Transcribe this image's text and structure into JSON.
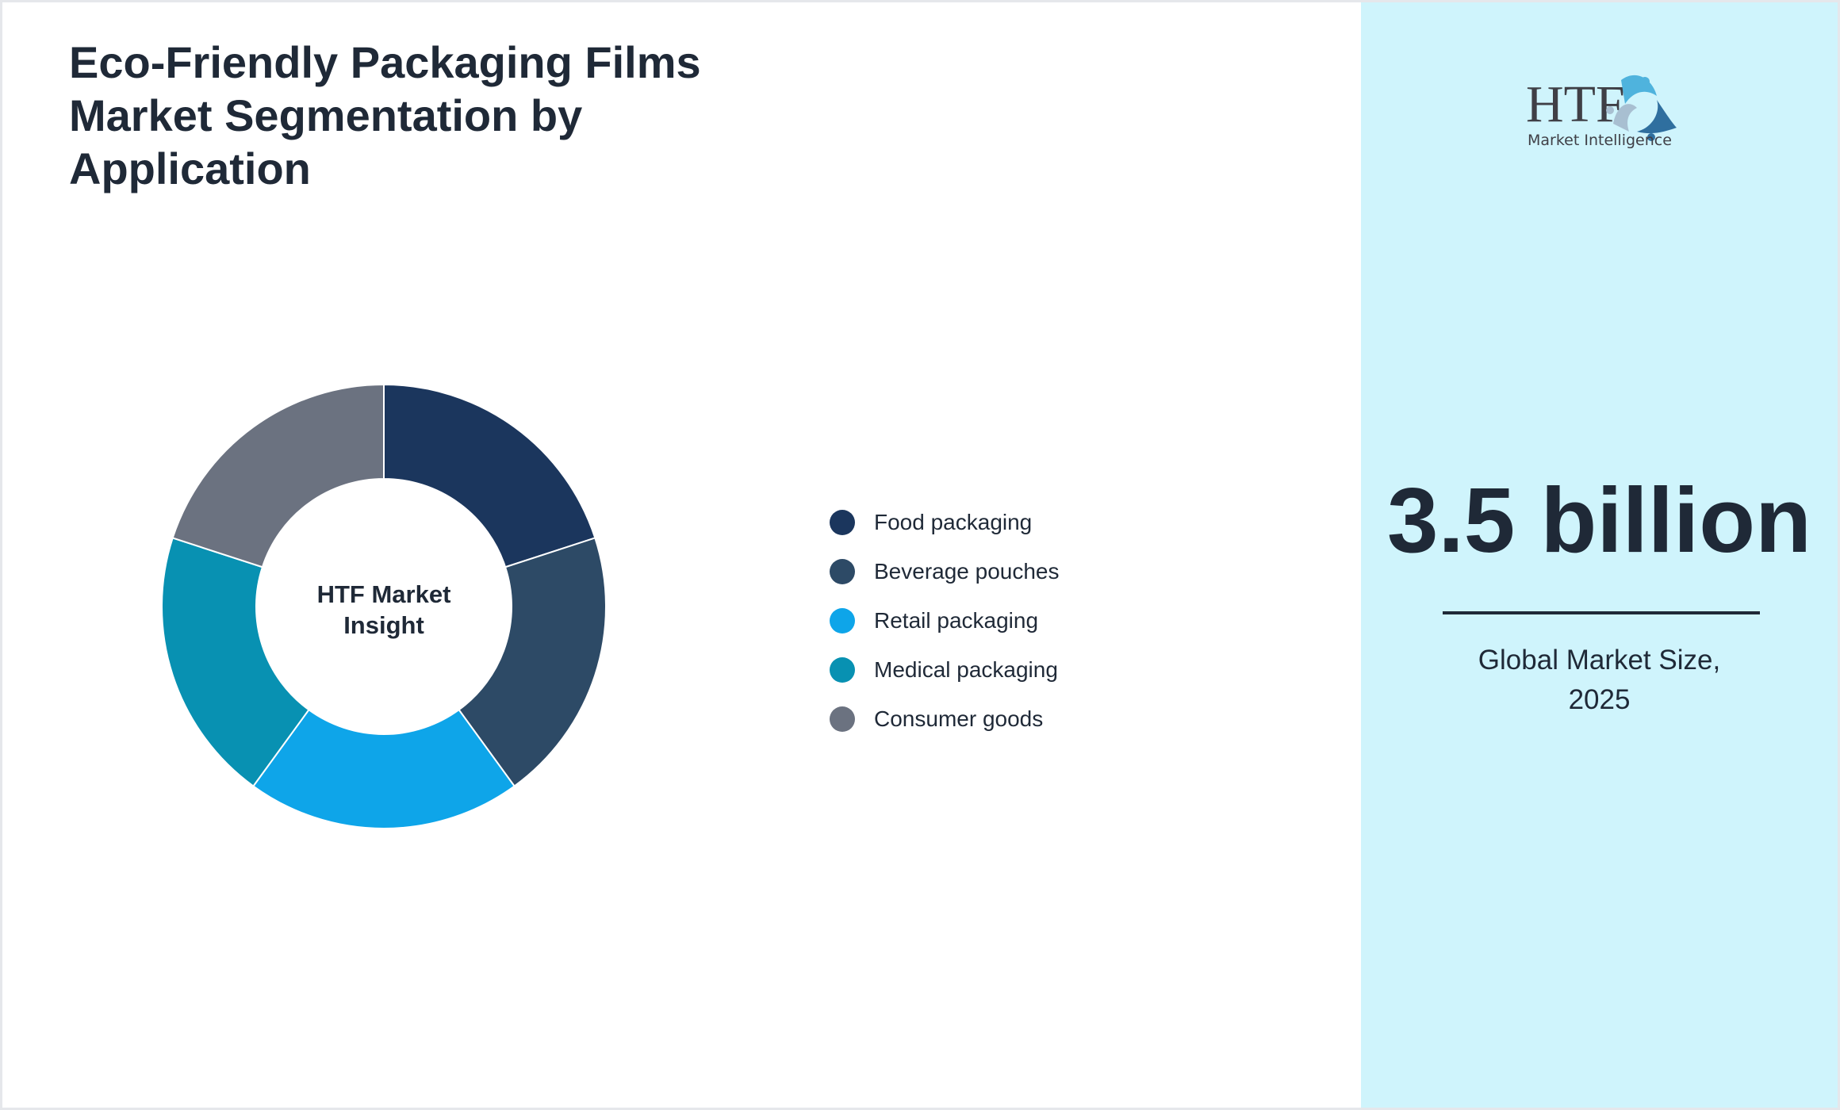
{
  "title": "Eco-Friendly Packaging Films Market Segmentation by Application",
  "chart_data": {
    "type": "pie",
    "donut": true,
    "center_label": [
      "HTF Market",
      "Insight"
    ],
    "categories": [
      "Food packaging",
      "Beverage pouches",
      "Retail packaging",
      "Medical packaging",
      "Consumer goods"
    ],
    "values": [
      20,
      20,
      20,
      20,
      20
    ],
    "colors": [
      "#1b365d",
      "#2d4a66",
      "#0ea5e9",
      "#0891b2",
      "#6b7280"
    ],
    "legend_position": "right"
  },
  "panel": {
    "logo_text": "HTF Market Intelligence",
    "value": "3.5 billion",
    "caption_line1": "Global Market Size,",
    "caption_line2": "2025",
    "background": "#cff4fc"
  }
}
